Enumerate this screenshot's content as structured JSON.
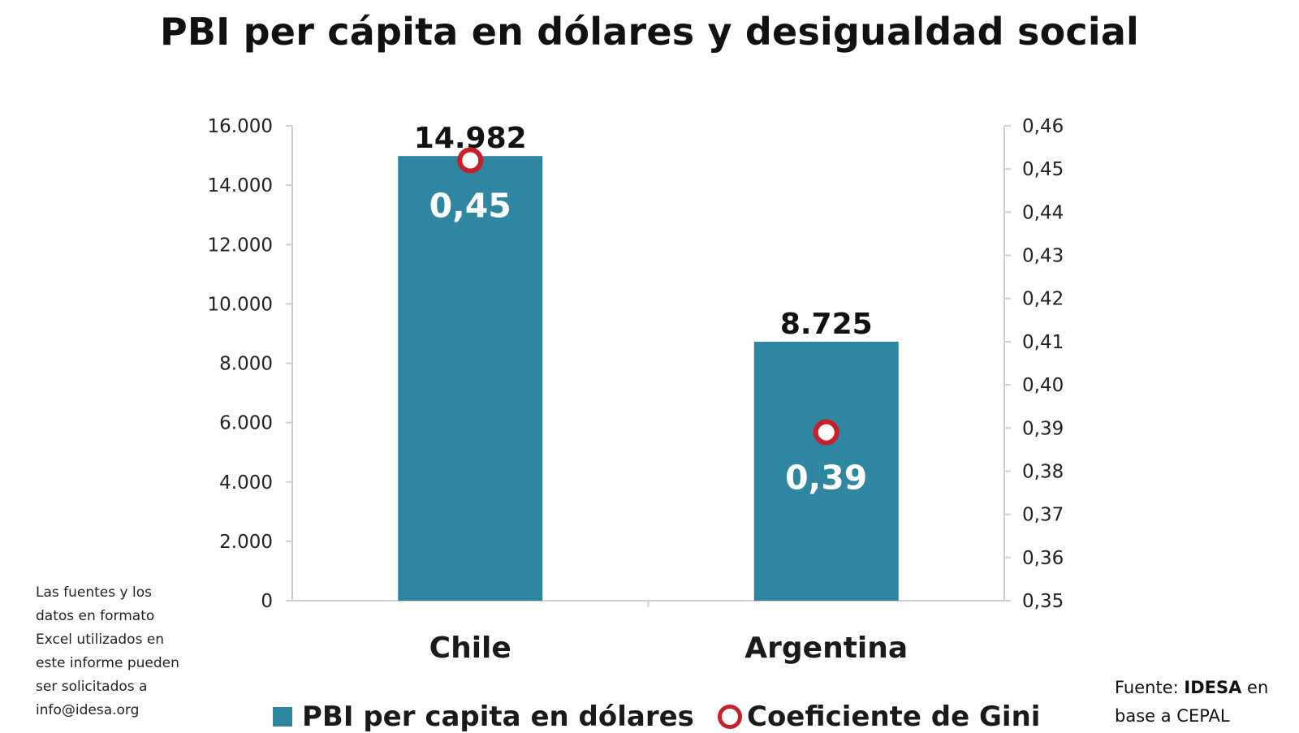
{
  "colors": {
    "bar": "#2e86a0",
    "marker": "#c8202a",
    "axis": "#cfcfcf"
  },
  "chart_data": {
    "type": "bar",
    "title": "PBI per cápita en dólares y desigualdad social",
    "categories": [
      "Chile",
      "Argentina"
    ],
    "series": [
      {
        "name": "PBI per capita en dólares",
        "axis": "left",
        "type": "bar",
        "values": [
          14982,
          8725
        ],
        "labels": [
          "14.982",
          "8.725"
        ]
      },
      {
        "name": "Coeficiente de Gini",
        "axis": "right",
        "type": "scatter",
        "values": [
          0.452,
          0.389
        ],
        "labels": [
          "0,45",
          "0,39"
        ]
      }
    ],
    "y_left": {
      "range": [
        0,
        16000
      ],
      "ticks": [
        0,
        2000,
        4000,
        6000,
        8000,
        10000,
        12000,
        14000,
        16000
      ],
      "tick_labels": [
        "0",
        "2.000",
        "4.000",
        "6.000",
        "8.000",
        "10.000",
        "12.000",
        "14.000",
        "16.000"
      ]
    },
    "y_right": {
      "range": [
        0.35,
        0.46
      ],
      "ticks": [
        0.35,
        0.36,
        0.37,
        0.38,
        0.39,
        0.4,
        0.41,
        0.42,
        0.43,
        0.44,
        0.45,
        0.46
      ],
      "tick_labels": [
        "0,35",
        "0,36",
        "0,37",
        "0,38",
        "0,39",
        "0,40",
        "0,41",
        "0,42",
        "0,43",
        "0,44",
        "0,45",
        "0,46"
      ]
    },
    "grid": false,
    "legend": "bottom"
  },
  "notes": {
    "side": "Las fuentes y los\ndatos en formato\nExcel utilizados en\neste informe pueden\nser solicitados a\ninfo@idesa.org",
    "source_prefix": "Fuente:",
    "source_org": "IDESA",
    "source_suffix": "en base a CEPAL"
  }
}
